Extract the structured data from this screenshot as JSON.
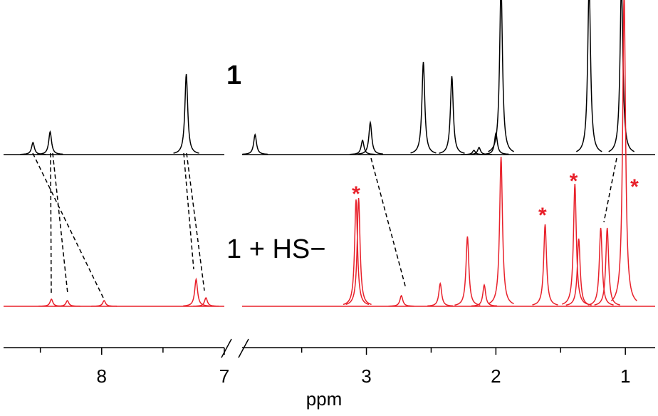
{
  "chart_data": {
    "type": "nmr",
    "x_label": "ppm",
    "x_segments": [
      {
        "xlim": [
          8.8,
          7.0
        ]
      },
      {
        "xlim": [
          3.96,
          0.77
        ]
      }
    ],
    "xticks": [
      8,
      7,
      3,
      2,
      1
    ],
    "minor_ticks": [
      8.5,
      7.5,
      3.5,
      2.5,
      1.5
    ],
    "series": [
      {
        "name": "1",
        "color": "#000000",
        "peaks": [
          {
            "ppm": 8.56,
            "height": 17
          },
          {
            "ppm": 8.42,
            "height": 32
          },
          {
            "ppm": 7.31,
            "height": 113
          },
          {
            "ppm": 3.86,
            "height": 28
          },
          {
            "ppm": 3.03,
            "height": 20
          },
          {
            "ppm": 2.97,
            "height": 45
          },
          {
            "ppm": 2.56,
            "height": 130
          },
          {
            "ppm": 2.34,
            "height": 110
          },
          {
            "ppm": 2.17,
            "height": 6
          },
          {
            "ppm": 2.13,
            "height": 10
          },
          {
            "ppm": 2.0,
            "height": 30
          },
          {
            "ppm": 1.96,
            "height": 240
          },
          {
            "ppm": 1.28,
            "height": 240
          },
          {
            "ppm": 1.03,
            "height": 240
          }
        ]
      },
      {
        "name": "1 + HS−",
        "color": "#e8202a",
        "peaks": [
          {
            "ppm": 8.41,
            "height": 10
          },
          {
            "ppm": 8.28,
            "height": 8
          },
          {
            "ppm": 7.98,
            "height": 8
          },
          {
            "ppm": 7.23,
            "height": 38
          },
          {
            "ppm": 7.15,
            "height": 12
          },
          {
            "ppm": 3.08,
            "height": 150
          },
          {
            "ppm": 3.06,
            "height": 152
          },
          {
            "ppm": 2.73,
            "height": 15
          },
          {
            "ppm": 2.43,
            "height": 32
          },
          {
            "ppm": 2.22,
            "height": 98
          },
          {
            "ppm": 2.09,
            "height": 30
          },
          {
            "ppm": 1.96,
            "height": 210
          },
          {
            "ppm": 1.62,
            "height": 115
          },
          {
            "ppm": 1.39,
            "height": 172
          },
          {
            "ppm": 1.36,
            "height": 95
          },
          {
            "ppm": 1.19,
            "height": 110
          },
          {
            "ppm": 1.14,
            "height": 110
          },
          {
            "ppm": 1.01,
            "height": 440
          }
        ]
      }
    ],
    "annotations": [
      {
        "text": "*",
        "ppm": 3.08
      },
      {
        "text": "*",
        "ppm": 1.64
      },
      {
        "text": "*",
        "ppm": 1.4
      },
      {
        "text": "*",
        "ppm": 0.93
      }
    ]
  }
}
